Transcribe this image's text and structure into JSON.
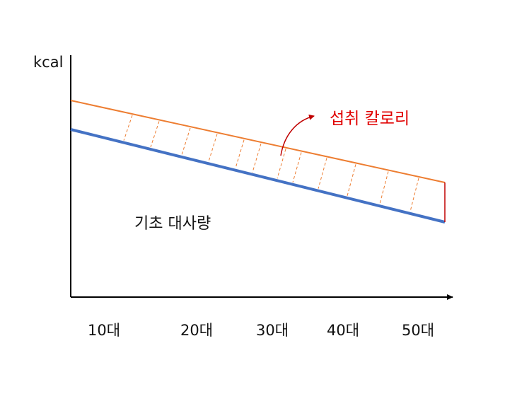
{
  "y_axis_label": "kcal",
  "x_categories": [
    "10대",
    "20대",
    "30대",
    "40대",
    "50대"
  ],
  "intake_label": "섭취 칼로리",
  "bmr_label": "기초 대사량",
  "colors": {
    "axis": "#000000",
    "intake_line": "#ED7D31",
    "bmr_line": "#4472C4",
    "intake_label": "#E00000",
    "arrow": "#C00000",
    "gap_hatch": "#ED7D31",
    "end_gap": "#C00000"
  }
}
